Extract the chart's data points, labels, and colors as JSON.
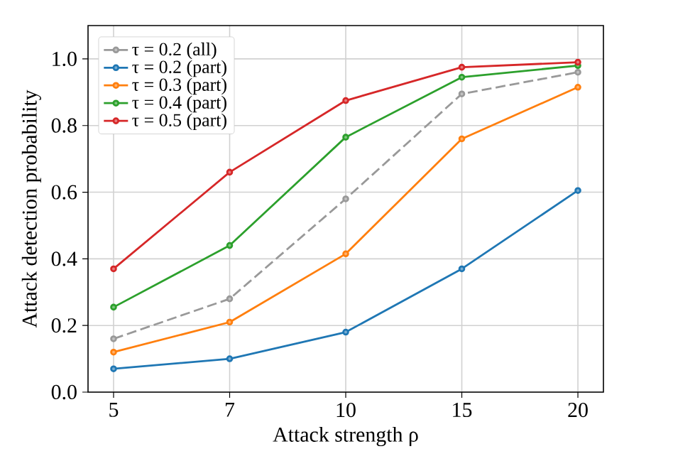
{
  "chart_data": {
    "type": "line",
    "xlabel": "Attack strength ρ",
    "ylabel": "Attack detection probability",
    "categories": [
      "5",
      "7",
      "10",
      "15",
      "20"
    ],
    "series": [
      {
        "name": "τ = 0.2 (all)",
        "color": "#999999",
        "line_style": "dashed",
        "values": [
          0.16,
          0.28,
          0.58,
          0.895,
          0.96
        ]
      },
      {
        "name": "τ = 0.2 (part)",
        "color": "#1f77b4",
        "values": [
          0.07,
          0.1,
          0.18,
          0.37,
          0.605
        ]
      },
      {
        "name": "τ = 0.3 (part)",
        "color": "#ff7f0e",
        "values": [
          0.12,
          0.21,
          0.415,
          0.76,
          0.915
        ]
      },
      {
        "name": "τ = 0.4 (part)",
        "color": "#2ca02c",
        "values": [
          0.255,
          0.44,
          0.765,
          0.945,
          0.98
        ]
      },
      {
        "name": "τ = 0.5 (part)",
        "color": "#d62728",
        "values": [
          0.37,
          0.66,
          0.875,
          0.975,
          0.99
        ]
      }
    ],
    "ylim": [
      0,
      1.1
    ],
    "yticks": [
      {
        "value": 0,
        "label": "0.0"
      },
      {
        "value": 0.2,
        "label": "0.2"
      },
      {
        "value": 0.4,
        "label": "0.4"
      },
      {
        "value": 0.6,
        "label": "0.6"
      },
      {
        "value": 0.8,
        "label": "0.8"
      },
      {
        "value": 1.0,
        "label": "1.0"
      }
    ],
    "grid": true,
    "legend": "top left",
    "marker": "circle",
    "line_style": "solid"
  }
}
